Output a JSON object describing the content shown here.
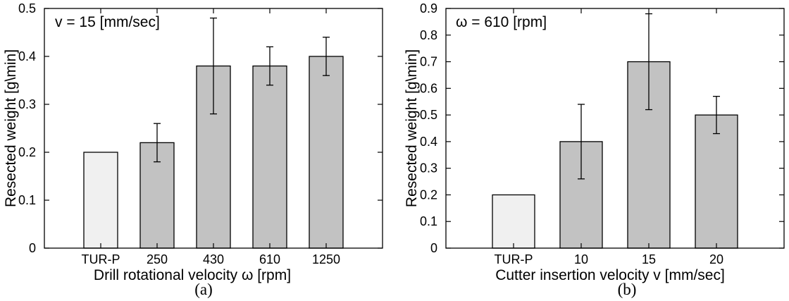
{
  "chart_data": [
    {
      "type": "bar",
      "panel_label": "(a)",
      "annotation": "v = 15 [mm/sec]",
      "xlabel": "Drill rotational velocity ω [rpm]",
      "ylabel": "Resected weight [g\\min]",
      "ylim": [
        0,
        0.5
      ],
      "yticks": [
        "0",
        "0.1",
        "0.2",
        "0.3",
        "0.4",
        "0.5"
      ],
      "categories": [
        "TUR-P",
        "250",
        "430",
        "610",
        "1250"
      ],
      "values": [
        0.2,
        0.22,
        0.38,
        0.38,
        0.4
      ],
      "error_low": [
        null,
        0.18,
        0.28,
        0.34,
        0.36
      ],
      "error_high": [
        null,
        0.26,
        0.48,
        0.42,
        0.44
      ],
      "bar_colors": [
        "#f0f0f0",
        "#c2c2c2",
        "#c2c2c2",
        "#c2c2c2",
        "#c2c2c2"
      ],
      "grid": false
    },
    {
      "type": "bar",
      "panel_label": "(b)",
      "annotation": "ω = 610 [rpm]",
      "xlabel": "Cutter insertion velocity v [mm/sec]",
      "ylabel": "Resected weight [g\\min]",
      "ylim": [
        0,
        0.9
      ],
      "yticks": [
        "0",
        "0.1",
        "0.2",
        "0.3",
        "0.4",
        "0.5",
        "0.6",
        "0.7",
        "0.8",
        "0.9"
      ],
      "categories": [
        "TUR-P",
        "10",
        "15",
        "20"
      ],
      "values": [
        0.2,
        0.4,
        0.7,
        0.5
      ],
      "error_low": [
        null,
        0.26,
        0.52,
        0.43
      ],
      "error_high": [
        null,
        0.54,
        0.88,
        0.57
      ],
      "bar_colors": [
        "#f0f0f0",
        "#c2c2c2",
        "#c2c2c2",
        "#c2c2c2"
      ],
      "grid": false
    }
  ]
}
